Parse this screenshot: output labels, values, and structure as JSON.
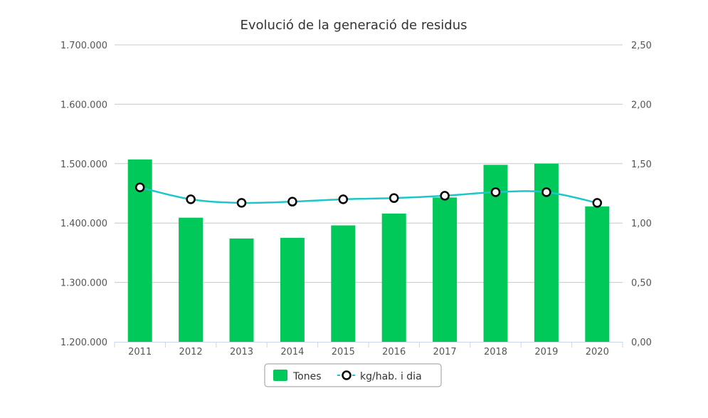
{
  "chart_data": {
    "type": "bar",
    "title": "Evolució de la generació de residus",
    "categories": [
      "2011",
      "2012",
      "2013",
      "2014",
      "2015",
      "2016",
      "2017",
      "2018",
      "2019",
      "2020"
    ],
    "series": [
      {
        "name": "Tones",
        "type": "bar",
        "axis": "left",
        "color": "#00c95a",
        "values": [
          1507000,
          1409000,
          1374000,
          1375000,
          1396000,
          1416000,
          1443000,
          1498000,
          1500000,
          1428000
        ]
      },
      {
        "name": "kg/hab. i dia",
        "type": "line",
        "axis": "right",
        "color": "#1ec7c7",
        "values": [
          1.3,
          1.2,
          1.17,
          1.18,
          1.2,
          1.21,
          1.23,
          1.26,
          1.26,
          1.17
        ]
      }
    ],
    "y_left": {
      "min": 1200000,
      "max": 1700000,
      "ticks": [
        1200000,
        1300000,
        1400000,
        1500000,
        1600000,
        1700000
      ],
      "tick_labels": [
        "1.200.000",
        "1.300.000",
        "1.400.000",
        "1.500.000",
        "1.600.000",
        "1.700.000"
      ]
    },
    "y_right": {
      "min": 0,
      "max": 2.5,
      "ticks": [
        0,
        0.5,
        1.0,
        1.5,
        2.0,
        2.5
      ],
      "tick_labels": [
        "0,00",
        "0,50",
        "1,00",
        "1,50",
        "2,00",
        "2,50"
      ]
    },
    "grid": true,
    "legend": "bottom-center"
  }
}
